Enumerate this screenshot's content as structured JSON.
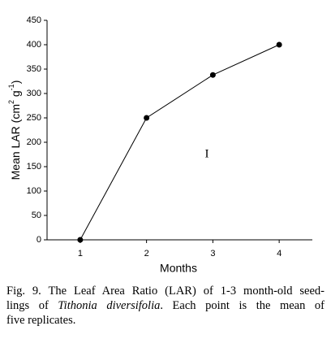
{
  "chart_data": {
    "type": "line",
    "x_label": "Months",
    "y_label": [
      "Mean LAR (cm",
      "2",
      " g",
      "-1",
      ")"
    ],
    "annotation": "I",
    "x": [
      1,
      2,
      3,
      4
    ],
    "values": [
      0,
      250,
      338,
      400
    ],
    "color": "#000000",
    "xlim": [
      0.5,
      4.5
    ],
    "xticks": [
      1,
      2,
      3,
      4
    ],
    "ylim": [
      0,
      450
    ],
    "yticks": [
      0,
      50,
      100,
      150,
      200,
      250,
      300,
      350,
      400,
      450
    ]
  },
  "caption": [
    "Fig. 9. The Leaf Area Ratio (LAR) of 1-3 month-old seed-",
    "lings of ",
    "Tithonia diversifolia",
    ". Each point is the mean of",
    "five replicates."
  ]
}
